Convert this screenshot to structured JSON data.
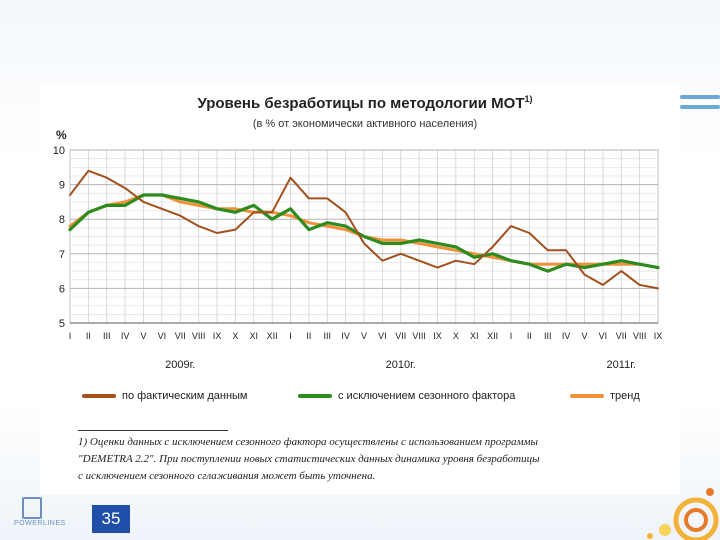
{
  "slide": {
    "page_number": "35",
    "logo_text": "POWERLINES",
    "accent_color": "#1f4fa8"
  },
  "footnote": {
    "line1": "1) Оценки данных с исключением сезонного фактора осуществлены с использованием программы",
    "line2": "\"DEMETRA 2.2\". При поступлении новых статистических данных динамика уровня безработицы",
    "line3": "с исключением сезонного сглаживания может быть уточнена."
  },
  "chart_data": {
    "type": "line",
    "title": "Уровень безработицы по методологии МОТ",
    "title_sup": "1)",
    "subtitle": "(в % от экономически активного населения)",
    "ylabel": "%",
    "ylim": [
      5,
      10
    ],
    "yticks": [
      "5",
      "6",
      "7",
      "8",
      "9",
      "10"
    ],
    "categories": [
      "I",
      "II",
      "III",
      "IV",
      "V",
      "VI",
      "VII",
      "VIII",
      "IX",
      "X",
      "XI",
      "XII",
      "I",
      "II",
      "III",
      "IV",
      "V",
      "VI",
      "VII",
      "VIII",
      "IX",
      "X",
      "XI",
      "XII",
      "I",
      "II",
      "III",
      "IV",
      "V",
      "VI",
      "VII",
      "VIII",
      "IX"
    ],
    "year_labels": [
      {
        "label": "2009г.",
        "center_index": 6
      },
      {
        "label": "2010г.",
        "center_index": 18
      },
      {
        "label": "2011г.",
        "center_index": 30
      }
    ],
    "series": [
      {
        "name": "по фактическим данным",
        "color": "#a3501e",
        "values": [
          8.7,
          9.4,
          9.2,
          8.9,
          8.5,
          8.3,
          8.1,
          7.8,
          7.6,
          7.7,
          8.2,
          8.2,
          9.2,
          8.6,
          8.6,
          8.2,
          7.3,
          6.8,
          7.0,
          6.8,
          6.6,
          6.8,
          6.7,
          7.2,
          7.8,
          7.6,
          7.1,
          7.1,
          6.4,
          6.1,
          6.5,
          6.1,
          6.0
        ]
      },
      {
        "name": "с исключением сезонного фактора",
        "color": "#2e8b1f",
        "values": [
          7.7,
          8.2,
          8.4,
          8.4,
          8.7,
          8.7,
          8.6,
          8.5,
          8.3,
          8.2,
          8.4,
          8.0,
          8.3,
          7.7,
          7.9,
          7.8,
          7.5,
          7.3,
          7.3,
          7.4,
          7.3,
          7.2,
          6.9,
          7.0,
          6.8,
          6.7,
          6.5,
          6.7,
          6.6,
          6.7,
          6.8,
          6.7,
          6.6
        ]
      },
      {
        "name": "тренд",
        "color": "#f0923a",
        "values": [
          7.8,
          8.2,
          8.4,
          8.5,
          8.7,
          8.7,
          8.5,
          8.4,
          8.3,
          8.3,
          8.2,
          8.2,
          8.1,
          7.9,
          7.8,
          7.7,
          7.5,
          7.4,
          7.4,
          7.3,
          7.2,
          7.1,
          7.0,
          6.9,
          6.8,
          6.7,
          6.7,
          6.7,
          6.7,
          6.7,
          6.7,
          6.7,
          6.6
        ]
      }
    ]
  }
}
